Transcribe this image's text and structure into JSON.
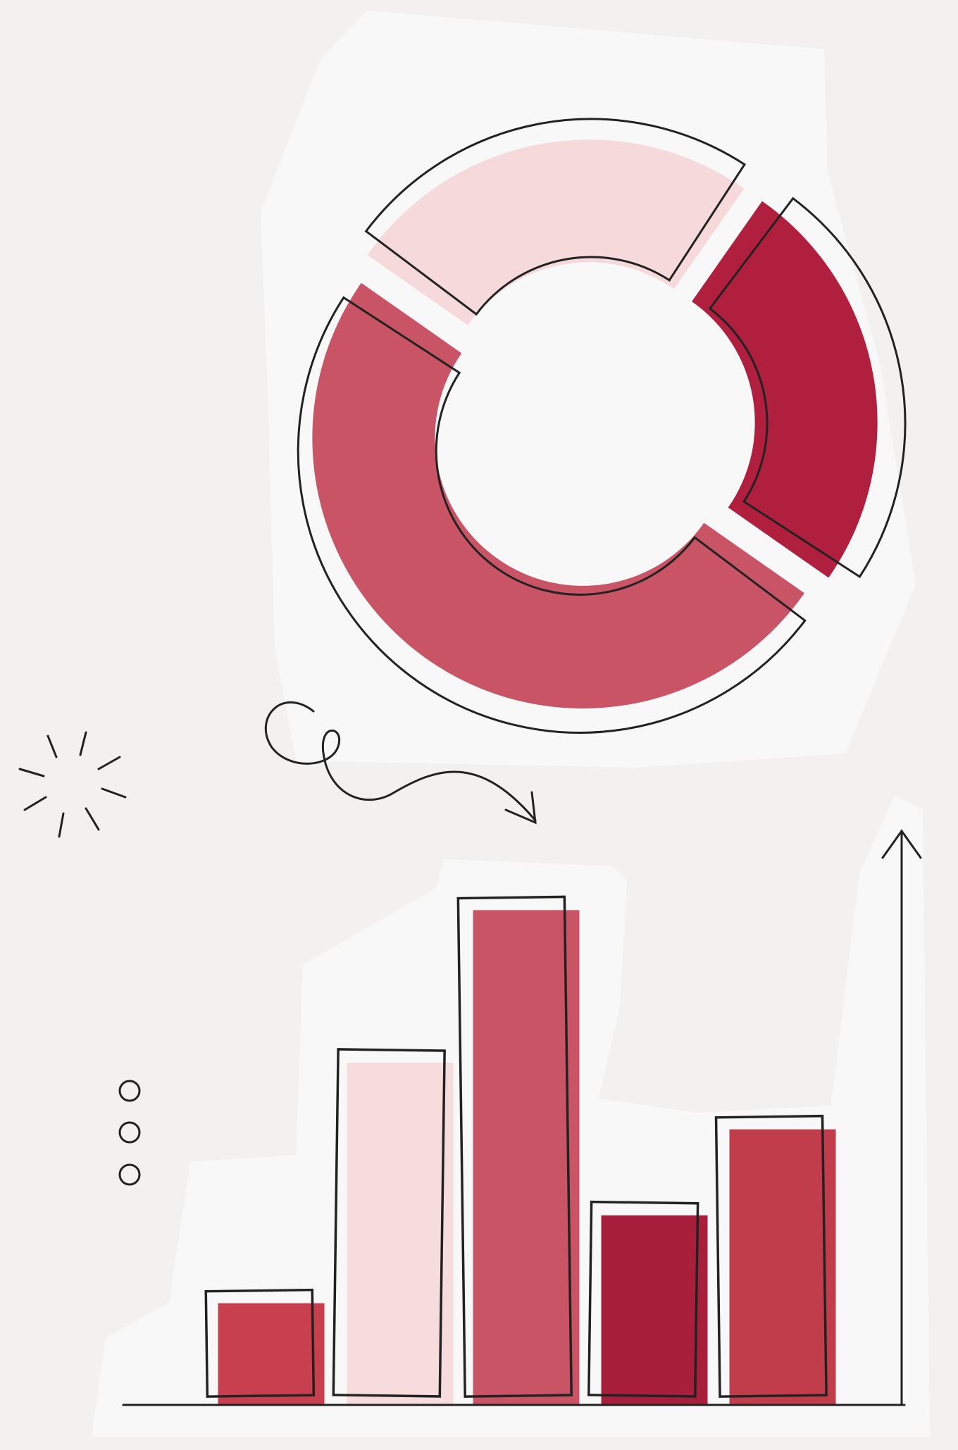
{
  "chart_data": [
    {
      "type": "pie",
      "values": [
        25,
        25,
        50
      ],
      "colors": [
        "#f6d9da",
        "#b01f3d",
        "#c85465"
      ]
    },
    {
      "type": "bar",
      "values": [
        110,
        370,
        535,
        205,
        298
      ],
      "colors": [
        "#c8404f",
        "#f6dcdc",
        "#c85465",
        "#a81f3b",
        "#c23d4c"
      ],
      "ylim": [
        0,
        600
      ]
    }
  ]
}
